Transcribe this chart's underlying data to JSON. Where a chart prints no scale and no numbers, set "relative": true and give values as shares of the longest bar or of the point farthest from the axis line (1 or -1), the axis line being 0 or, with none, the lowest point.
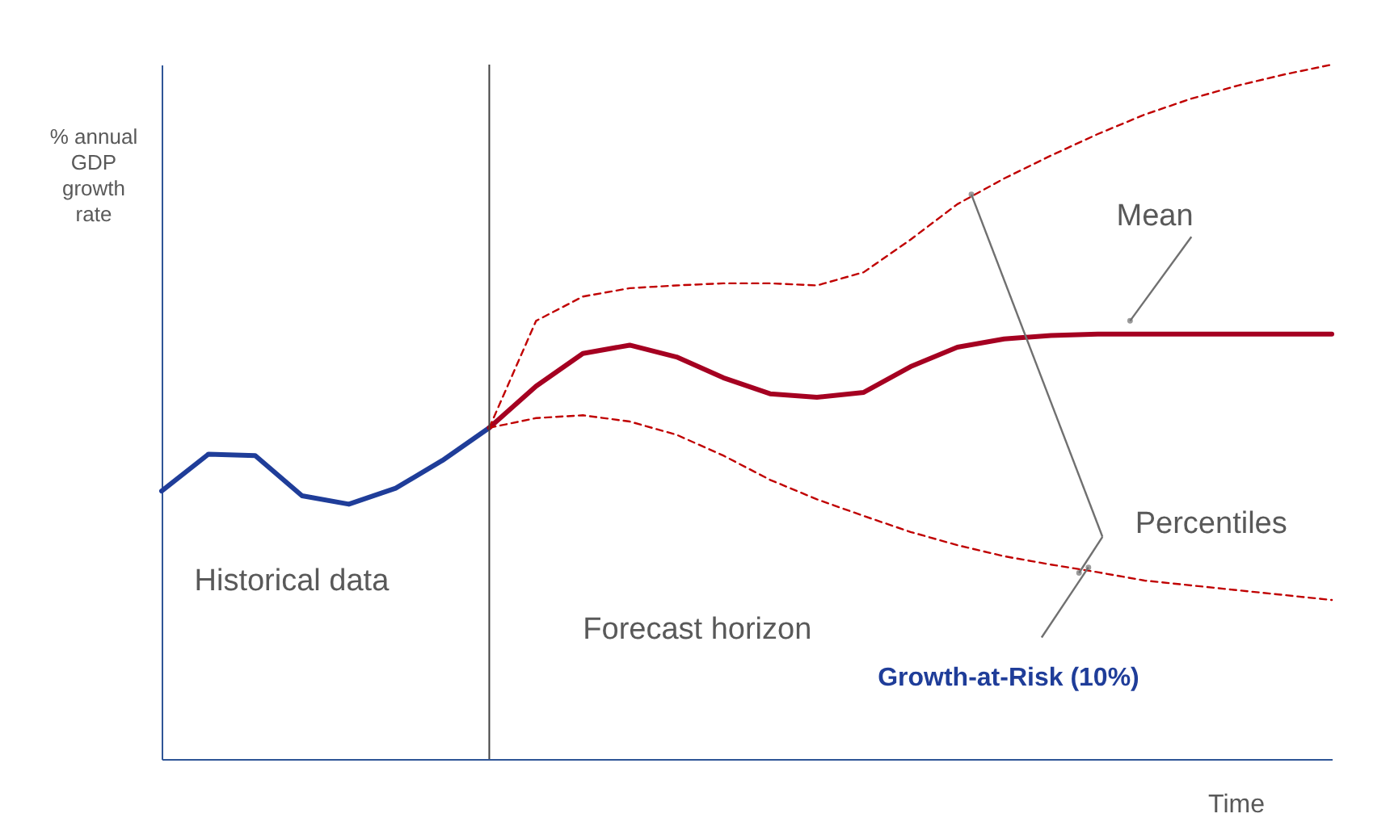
{
  "chart_data": {
    "type": "line",
    "relative": true,
    "xlabel": "Time",
    "ylabel": "% annual GDP growth rate",
    "categories": [
      null,
      null,
      null,
      null,
      null,
      null,
      null,
      null,
      null,
      null,
      null,
      null,
      null,
      null,
      null,
      null,
      null,
      null,
      null,
      null,
      null,
      null,
      null,
      null,
      null,
      null
    ],
    "series": [
      {
        "color": "#1f3d99",
        "values": [
          0.386,
          0.439,
          0.437,
          0.379,
          0.367,
          0.39,
          0.43,
          0.477,
          null,
          null,
          null,
          null,
          null,
          null,
          null,
          null,
          null,
          null,
          null,
          null,
          null,
          null,
          null,
          null,
          null,
          null
        ]
      },
      {
        "color": "#a50021",
        "values": [
          null,
          null,
          null,
          null,
          null,
          null,
          null,
          0.477,
          0.537,
          0.584,
          0.596,
          0.579,
          0.549,
          0.526,
          0.521,
          0.528,
          0.565,
          0.593,
          0.605,
          0.61,
          0.612,
          0.612,
          0.612,
          0.612,
          0.612,
          0.612
        ]
      },
      {
        "color": "#c00000",
        "line_style": "dashed",
        "values": [
          null,
          null,
          null,
          null,
          null,
          null,
          null,
          0.477,
          0.631,
          0.666,
          0.678,
          0.682,
          0.685,
          0.685,
          0.682,
          0.701,
          0.748,
          0.799,
          0.836,
          0.869,
          0.9,
          0.928,
          0.951,
          0.97,
          0.986,
          1.0
        ]
      },
      {
        "color": "#c00000",
        "line_style": "dashed",
        "values": [
          null,
          null,
          null,
          null,
          null,
          null,
          null,
          0.477,
          0.491,
          0.495,
          0.486,
          0.467,
          0.437,
          0.402,
          0.374,
          0.35,
          0.327,
          0.308,
          0.292,
          0.28,
          0.269,
          0.257,
          0.25,
          0.243,
          0.236,
          0.229
        ]
      }
    ],
    "annotations": [
      "Historical data",
      "Forecast horizon",
      "Mean",
      "Percentiles",
      "Growth-at-Risk (10%)"
    ],
    "grid": false,
    "tick_labels": false,
    "marker": "none"
  }
}
